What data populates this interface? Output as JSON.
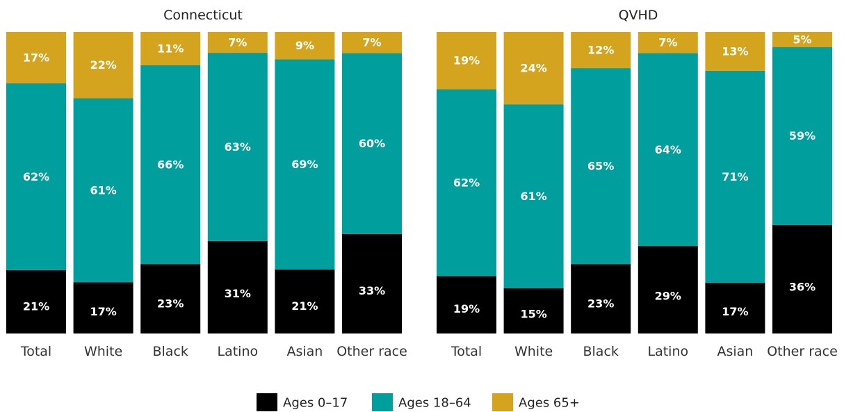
{
  "chart_data": [
    {
      "type": "bar",
      "stacked": true,
      "normalized": true,
      "title": "Connecticut",
      "categories": [
        "Total",
        "White",
        "Black",
        "Latino",
        "Asian",
        "Other race"
      ],
      "series": [
        {
          "name": "Ages 0-17",
          "values": [
            21,
            17,
            23,
            31,
            21,
            33
          ],
          "labels": [
            "21%",
            "17%",
            "23%",
            "31%",
            "21%",
            "33%"
          ]
        },
        {
          "name": "Ages 18-64",
          "values": [
            62,
            61,
            66,
            63,
            69,
            60
          ],
          "labels": [
            "62%",
            "61%",
            "66%",
            "63%",
            "69%",
            "60%"
          ]
        },
        {
          "name": "Ages 65+",
          "values": [
            17,
            22,
            11,
            7,
            9,
            7
          ],
          "labels": [
            "17%",
            "22%",
            "11%",
            "7%",
            "9%",
            "7%"
          ]
        }
      ],
      "ylim": [
        0,
        100
      ]
    },
    {
      "type": "bar",
      "stacked": true,
      "normalized": true,
      "title": "QVHD",
      "categories": [
        "Total",
        "White",
        "Black",
        "Latino",
        "Asian",
        "Other race"
      ],
      "series": [
        {
          "name": "Ages 0-17",
          "values": [
            19,
            15,
            23,
            29,
            17,
            36
          ],
          "labels": [
            "19%",
            "15%",
            "23%",
            "29%",
            "17%",
            "36%"
          ]
        },
        {
          "name": "Ages 18-64",
          "values": [
            62,
            61,
            65,
            64,
            71,
            59
          ],
          "labels": [
            "62%",
            "61%",
            "65%",
            "64%",
            "71%",
            "59%"
          ]
        },
        {
          "name": "Ages 65+",
          "values": [
            19,
            24,
            12,
            7,
            13,
            5
          ],
          "labels": [
            "19%",
            "24%",
            "12%",
            "7%",
            "13%",
            "5%"
          ]
        }
      ],
      "ylim": [
        0,
        100
      ]
    }
  ],
  "legend": {
    "position": "bottom-center",
    "items": [
      {
        "label": "Ages 0–17",
        "color": "#000000"
      },
      {
        "label": "Ages 18–64",
        "color": "#009e9c"
      },
      {
        "label": "Ages 65+",
        "color": "#d4a41f"
      }
    ]
  },
  "colors": {
    "ages_0_17": "#000000",
    "ages_18_64": "#009e9c",
    "ages_65_plus": "#d4a41f",
    "bar_label": "#ffffff"
  }
}
